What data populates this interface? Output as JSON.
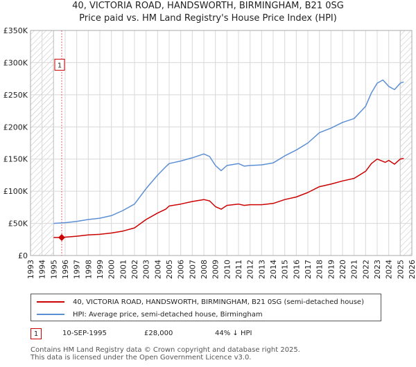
{
  "title_line1": "40, VICTORIA ROAD, HANDSWORTH, BIRMINGHAM, B21 0SG",
  "title_line2": "Price paid vs. HM Land Registry's House Price Index (HPI)",
  "colors": {
    "price_line": "#cc0000",
    "hpi_line": "#5b8fd4",
    "hatch": "#bbbbbb",
    "grid": "#d8d8d8",
    "marker_vline": "#e06060"
  },
  "chart_data": {
    "type": "line",
    "xlim": [
      1993,
      2026
    ],
    "ylim": [
      0,
      350000
    ],
    "x_ticks": [
      "1993",
      "1994",
      "1995",
      "1996",
      "1997",
      "1998",
      "1999",
      "2000",
      "2001",
      "2002",
      "2003",
      "2004",
      "2005",
      "2006",
      "2007",
      "2008",
      "2009",
      "2010",
      "2011",
      "2012",
      "2013",
      "2014",
      "2015",
      "2016",
      "2017",
      "2018",
      "2019",
      "2020",
      "2021",
      "2022",
      "2023",
      "2024",
      "2025",
      "2026"
    ],
    "y_ticks": [
      {
        "value": 0,
        "label": "£0"
      },
      {
        "value": 50000,
        "label": "£50K"
      },
      {
        "value": 100000,
        "label": "£100K"
      },
      {
        "value": 150000,
        "label": "£150K"
      },
      {
        "value": 200000,
        "label": "£200K"
      },
      {
        "value": 250000,
        "label": "£250K"
      },
      {
        "value": 300000,
        "label": "£300K"
      },
      {
        "value": 350000,
        "label": "£350K"
      }
    ],
    "hatched_ranges": [
      [
        1993,
        1995
      ],
      [
        2025,
        2026
      ]
    ],
    "series": [
      {
        "name": "40, VICTORIA ROAD, HANDSWORTH, BIRMINGHAM, B21 0SG (semi-detached house)",
        "x": [
          1995,
          1995.7,
          1996,
          1997,
          1998,
          1999,
          2000,
          2001,
          2002,
          2003,
          2004,
          2004.7,
          2005,
          2006,
          2007,
          2008,
          2008.5,
          2009,
          2009.5,
          2010,
          2011,
          2011.5,
          2012,
          2013,
          2014,
          2015,
          2016,
          2017,
          2018,
          2019,
          2020,
          2021,
          2022,
          2022.5,
          2023,
          2023.7,
          2024,
          2024.5,
          2025,
          2025.3
        ],
        "values": [
          28000,
          28000,
          28500,
          30000,
          32000,
          33000,
          35000,
          38000,
          43000,
          56000,
          66000,
          72000,
          77000,
          80000,
          84000,
          87000,
          85000,
          76000,
          72000,
          78000,
          80000,
          78000,
          79000,
          79000,
          81000,
          87000,
          91000,
          98000,
          107000,
          111000,
          116000,
          120000,
          131000,
          143000,
          150000,
          145000,
          148000,
          142000,
          150000,
          151000
        ]
      },
      {
        "name": "HPI: Average price, semi-detached house, Birmingham",
        "x": [
          1995,
          1996,
          1997,
          1998,
          1999,
          2000,
          2001,
          2002,
          2003,
          2004,
          2004.7,
          2005,
          2006,
          2007,
          2008,
          2008.5,
          2009,
          2009.5,
          2010,
          2011,
          2011.5,
          2012,
          2013,
          2014,
          2015,
          2016,
          2017,
          2018,
          2019,
          2020,
          2021,
          2022,
          2022.5,
          2023,
          2023.5,
          2024,
          2024.5,
          2025,
          2025.3
        ],
        "values": [
          50000,
          51000,
          53000,
          56000,
          58000,
          62000,
          70000,
          80000,
          104000,
          125000,
          138000,
          143000,
          147000,
          152000,
          158000,
          154000,
          140000,
          132000,
          140000,
          143000,
          139000,
          140000,
          141000,
          144000,
          155000,
          164000,
          175000,
          191000,
          198000,
          207000,
          213000,
          232000,
          253000,
          268000,
          273000,
          263000,
          258000,
          268000,
          270000
        ]
      }
    ],
    "sale_points": [
      {
        "label": "1",
        "x": 1995.7,
        "value": 28000
      }
    ]
  },
  "legend": [
    {
      "label": "40, VICTORIA ROAD, HANDSWORTH, BIRMINGHAM, B21 0SG (semi-detached house)",
      "color_key": "price_line"
    },
    {
      "label": "HPI: Average price, semi-detached house, Birmingham",
      "color_key": "hpi_line"
    }
  ],
  "transaction": {
    "marker": "1",
    "date": "10-SEP-1995",
    "price": "£28,000",
    "hpi_diff": "44% ↓ HPI"
  },
  "footer_line1": "Contains HM Land Registry data © Crown copyright and database right 2025.",
  "footer_line2": "This data is licensed under the Open Government Licence v3.0."
}
